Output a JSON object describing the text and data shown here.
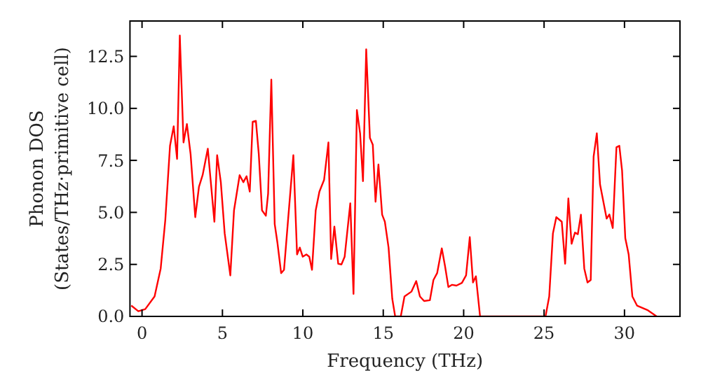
{
  "chart_data": {
    "type": "line",
    "xlabel": "Frequency (THz)",
    "ylabel": "Phonon DOS\n(States/THz·primitive cell)",
    "xlim": [
      -0.75,
      33.45
    ],
    "xticks": [
      0,
      5,
      10,
      15,
      20,
      25,
      30
    ],
    "ylim": [
      0,
      14.2
    ],
    "yticks": [
      {
        "value": 0,
        "label": "0.0"
      },
      2.5,
      {
        "value": 5,
        "label": "5.0"
      },
      7.5,
      {
        "value": 10,
        "label": "10.0"
      },
      12.5
    ],
    "grid": false,
    "marker": "none",
    "line_style": "solid",
    "series": [
      {
        "color": "#ff0000",
        "x": [
          -0.67,
          -0.23,
          0.2,
          0.78,
          1.16,
          1.45,
          1.74,
          1.97,
          2.18,
          2.35,
          2.58,
          2.79,
          3.02,
          3.31,
          3.54,
          3.77,
          4.09,
          4.5,
          4.67,
          4.9,
          5.14,
          5.49,
          5.72,
          6.07,
          6.3,
          6.5,
          6.7,
          6.88,
          7.08,
          7.26,
          7.46,
          7.7,
          7.84,
          8.04,
          8.25,
          8.42,
          8.65,
          8.83,
          9.06,
          9.41,
          9.64,
          9.81,
          9.99,
          10.22,
          10.4,
          10.57,
          10.8,
          11.03,
          11.32,
          11.59,
          11.76,
          11.96,
          12.2,
          12.4,
          12.6,
          12.95,
          13.15,
          13.36,
          13.56,
          13.74,
          13.94,
          14.17,
          14.35,
          14.52,
          14.7,
          14.93,
          15.1,
          15.33,
          15.56,
          15.74,
          16.09,
          16.32,
          16.75,
          17.05,
          17.28,
          17.54,
          17.9,
          18.12,
          18.35,
          18.64,
          18.84,
          19.05,
          19.28,
          19.55,
          19.89,
          20.15,
          20.38,
          20.58,
          20.76,
          21.02,
          25.09,
          25.32,
          25.55,
          25.76,
          26.1,
          26.31,
          26.51,
          26.71,
          26.92,
          27.1,
          27.29,
          27.5,
          27.7,
          27.9,
          28.08,
          28.28,
          28.48,
          28.89,
          29.06,
          29.27,
          29.5,
          29.68,
          29.85,
          30.05,
          30.26,
          30.49,
          30.78,
          31.42,
          32.0
        ],
        "values": [
          0.52,
          0.25,
          0.35,
          0.96,
          2.3,
          4.66,
          8.2,
          9.14,
          7.57,
          13.5,
          8.36,
          9.25,
          7.8,
          4.77,
          6.23,
          6.8,
          8.06,
          4.55,
          7.75,
          6.45,
          3.99,
          1.97,
          5.1,
          6.79,
          6.45,
          6.74,
          6.0,
          9.36,
          9.4,
          7.8,
          5.1,
          4.84,
          5.9,
          11.38,
          4.44,
          3.54,
          2.08,
          2.24,
          4.44,
          7.75,
          2.98,
          3.31,
          2.87,
          2.98,
          2.87,
          2.24,
          5.1,
          6.0,
          6.56,
          8.36,
          2.76,
          4.32,
          2.53,
          2.5,
          2.87,
          5.44,
          1.08,
          9.92,
          8.8,
          6.5,
          12.84,
          8.58,
          8.25,
          5.51,
          7.3,
          4.89,
          4.55,
          3.31,
          0.85,
          0,
          0,
          0.96,
          1.19,
          1.7,
          0.96,
          0.74,
          0.78,
          1.75,
          2.08,
          3.27,
          2.42,
          1.41,
          1.52,
          1.48,
          1.61,
          1.97,
          3.81,
          1.63,
          1.93,
          0,
          0,
          0.96,
          3.99,
          4.77,
          4.55,
          2.53,
          5.67,
          3.49,
          4.03,
          3.95,
          4.89,
          2.3,
          1.63,
          1.75,
          7.68,
          8.8,
          6.34,
          4.7,
          4.9,
          4.25,
          8.13,
          8.2,
          7.01,
          3.76,
          2.98,
          0.96,
          0.52,
          0.31,
          0
        ]
      }
    ]
  }
}
